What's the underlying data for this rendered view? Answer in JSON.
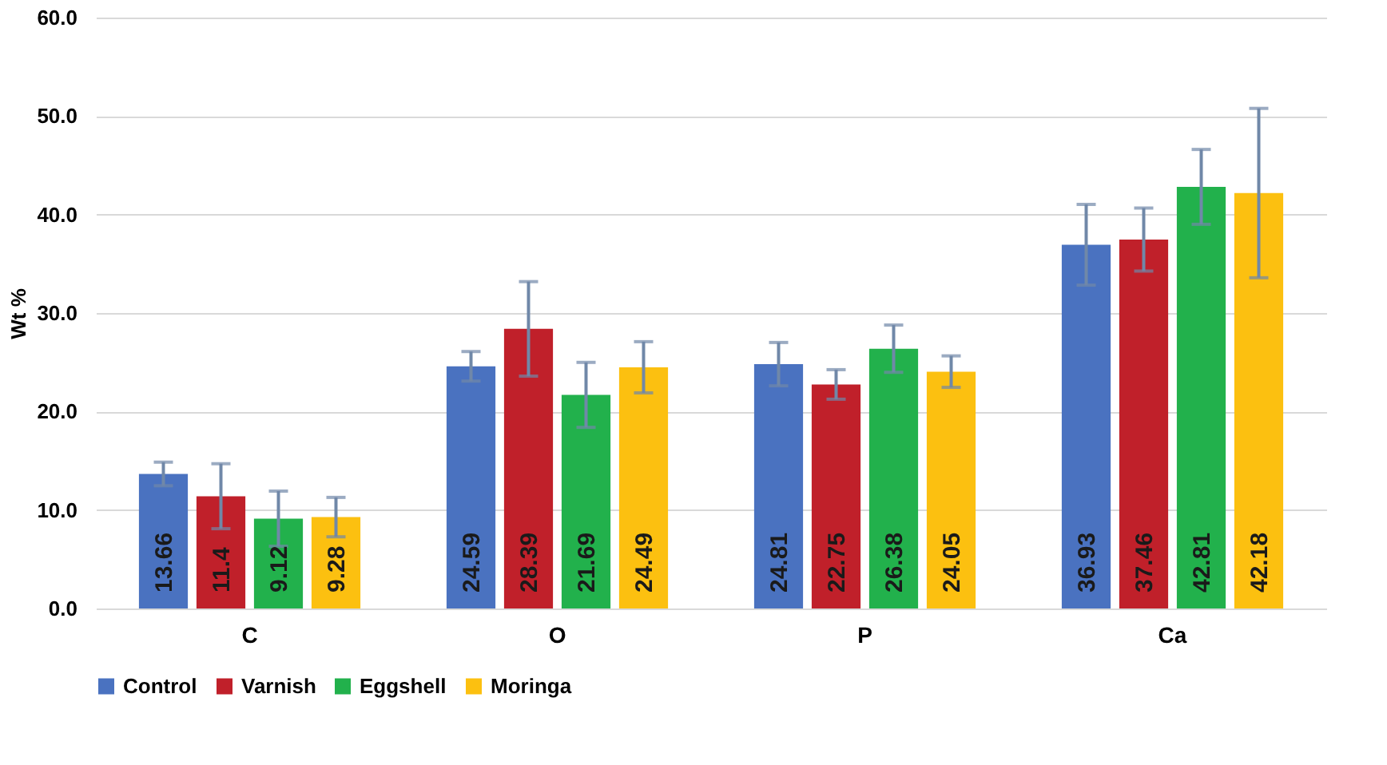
{
  "chart_data": {
    "type": "bar",
    "ylabel": "Wt %",
    "categories": [
      "C",
      "O",
      "P",
      "Ca"
    ],
    "series": [
      {
        "name": "Control",
        "color": "#4a72c0",
        "values": [
          13.66,
          24.59,
          24.81,
          36.93
        ],
        "errors": [
          1.2,
          1.5,
          2.2,
          4.1
        ]
      },
      {
        "name": "Varnish",
        "color": "#c0202a",
        "values": [
          11.4,
          28.39,
          22.75,
          37.46
        ],
        "errors": [
          3.3,
          4.8,
          1.5,
          3.2
        ]
      },
      {
        "name": "Eggshell",
        "color": "#22b14c",
        "values": [
          9.12,
          21.69,
          26.38,
          42.81
        ],
        "errors": [
          2.8,
          3.3,
          2.4,
          3.8
        ]
      },
      {
        "name": "Moringa",
        "color": "#fcc010",
        "values": [
          9.28,
          24.49,
          24.05,
          42.18
        ],
        "errors": [
          2.0,
          2.6,
          1.6,
          8.6
        ]
      }
    ],
    "ylim": [
      0,
      60
    ],
    "yticks": [
      {
        "value": 0,
        "label": "0.0"
      },
      {
        "value": 10,
        "label": "10.0"
      },
      {
        "value": 20,
        "label": "20.0"
      },
      {
        "value": 30,
        "label": "30.0"
      },
      {
        "value": 40,
        "label": "40.0"
      },
      {
        "value": 50,
        "label": "50.0"
      },
      {
        "value": 60,
        "label": "60.0"
      }
    ],
    "grid": "y",
    "legend": "bottom",
    "data_labels": true
  }
}
